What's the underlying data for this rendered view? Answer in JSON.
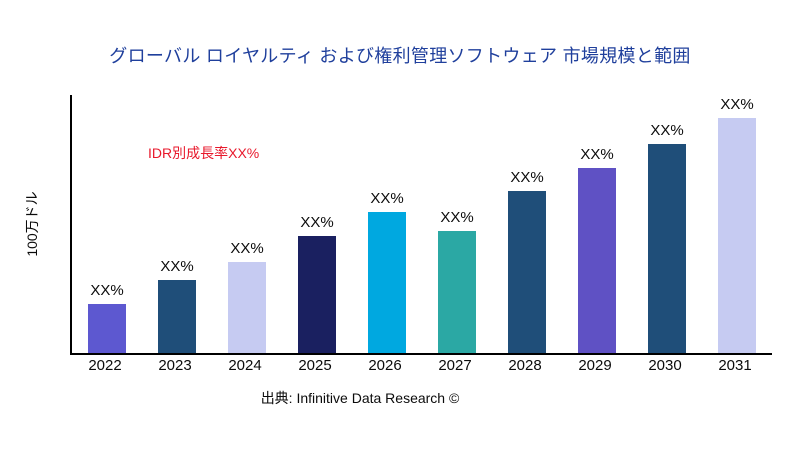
{
  "title": "グローバル ロイヤルティ および権利管理ソフトウェア 市場規模と範囲",
  "annotation": "IDR別成長率XX%",
  "source": "出典: Infinitive Data Research ©",
  "chart_data": {
    "type": "bar",
    "title": "グローバル ロイヤルティ および権利管理ソフトウェア 市場規模と範囲",
    "xlabel": "",
    "ylabel": "100万ドル",
    "categories": [
      "2022",
      "2023",
      "2024",
      "2025",
      "2026",
      "2027",
      "2028",
      "2029",
      "2030",
      "2031"
    ],
    "values": [
      21,
      31,
      39,
      50,
      60,
      52,
      69,
      79,
      89,
      100
    ],
    "bar_labels": [
      "XX%",
      "XX%",
      "XX%",
      "XX%",
      "XX%",
      "XX%",
      "XX%",
      "XX%",
      "XX%",
      "XX%"
    ],
    "colors": [
      "#5d58d0",
      "#1f4e79",
      "#c6cbf2",
      "#1a2060",
      "#00a8e0",
      "#2ba8a4",
      "#1f4e79",
      "#5f51c4",
      "#1f4e79",
      "#c6cbf2"
    ],
    "ylim": [
      0,
      110
    ],
    "grid": false,
    "legend": "none",
    "annotation": "IDR別成長率XX%",
    "annotation_color": "#e8192c",
    "title_color": "#1f3f9c"
  }
}
